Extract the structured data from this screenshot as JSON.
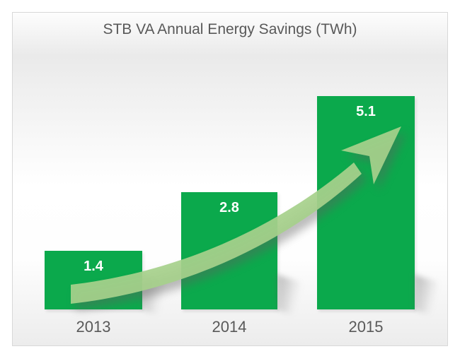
{
  "window": {
    "frame_border_color": "#d8d8d8",
    "background_color": "#ffffff"
  },
  "chart_data": {
    "type": "bar",
    "title": "STB VA Annual Energy Savings (TWh)",
    "categories": [
      "2013",
      "2014",
      "2015"
    ],
    "values": [
      1.4,
      2.8,
      5.1
    ],
    "value_labels": [
      "1.4",
      "2.8",
      "5.1"
    ],
    "unit": "TWh",
    "xlabel": "",
    "ylabel": "",
    "ylim": [
      0,
      6
    ],
    "grid": false,
    "legend": false,
    "bar_color": "#0ba94c",
    "bar_value_label_color": "#ffffff",
    "axis_text_color": "#595959",
    "title_color": "#595959",
    "arrow_color": "#a7d18c",
    "annotations": [
      "upward curved trend arrow from 2013 bar to 2015 bar"
    ]
  }
}
